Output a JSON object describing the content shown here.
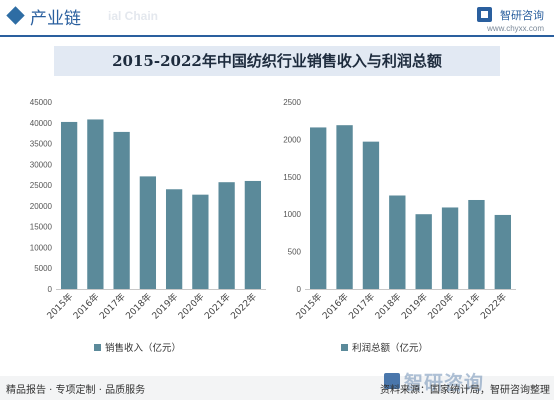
{
  "header": {
    "title": "产业链",
    "watermark_text": "ial Chain",
    "logo_name": "智研咨询",
    "logo_url": "www.chyxx.com"
  },
  "title": "2015-2022年中国纺织行业销售收入与利润总额",
  "colors": {
    "bar": "#5b8a9a",
    "header": "#2a5f9e",
    "title_bg": "#e2e9f3"
  },
  "chart_data": [
    {
      "type": "bar",
      "categories": [
        "2015年",
        "2016年",
        "2017年",
        "2018年",
        "2019年",
        "2020年",
        "2021年",
        "2022年"
      ],
      "series": [
        {
          "name": "销售收入（亿元）",
          "values": [
            40200,
            40800,
            37800,
            27100,
            24000,
            22700,
            25700,
            26000
          ]
        }
      ],
      "ylim": [
        0,
        45000
      ],
      "yticks": [
        0,
        5000,
        10000,
        15000,
        20000,
        25000,
        30000,
        35000,
        40000,
        45000
      ],
      "legend": "bottom-left",
      "grid": false
    },
    {
      "type": "bar",
      "categories": [
        "2015年",
        "2016年",
        "2017年",
        "2018年",
        "2019年",
        "2020年",
        "2021年",
        "2022年"
      ],
      "series": [
        {
          "name": "利润总额（亿元）",
          "values": [
            2160,
            2190,
            1970,
            1250,
            1000,
            1090,
            1190,
            990
          ]
        }
      ],
      "ylim": [
        0,
        2500
      ],
      "yticks": [
        0,
        500,
        1000,
        1500,
        2000,
        2500
      ],
      "legend": "bottom-left",
      "grid": false
    }
  ],
  "footer": {
    "left": "精品报告 · 专项定制 · 品质服务",
    "watermark": "智研咨询",
    "source": "资料来源：国家统计局，智研咨询整理"
  }
}
